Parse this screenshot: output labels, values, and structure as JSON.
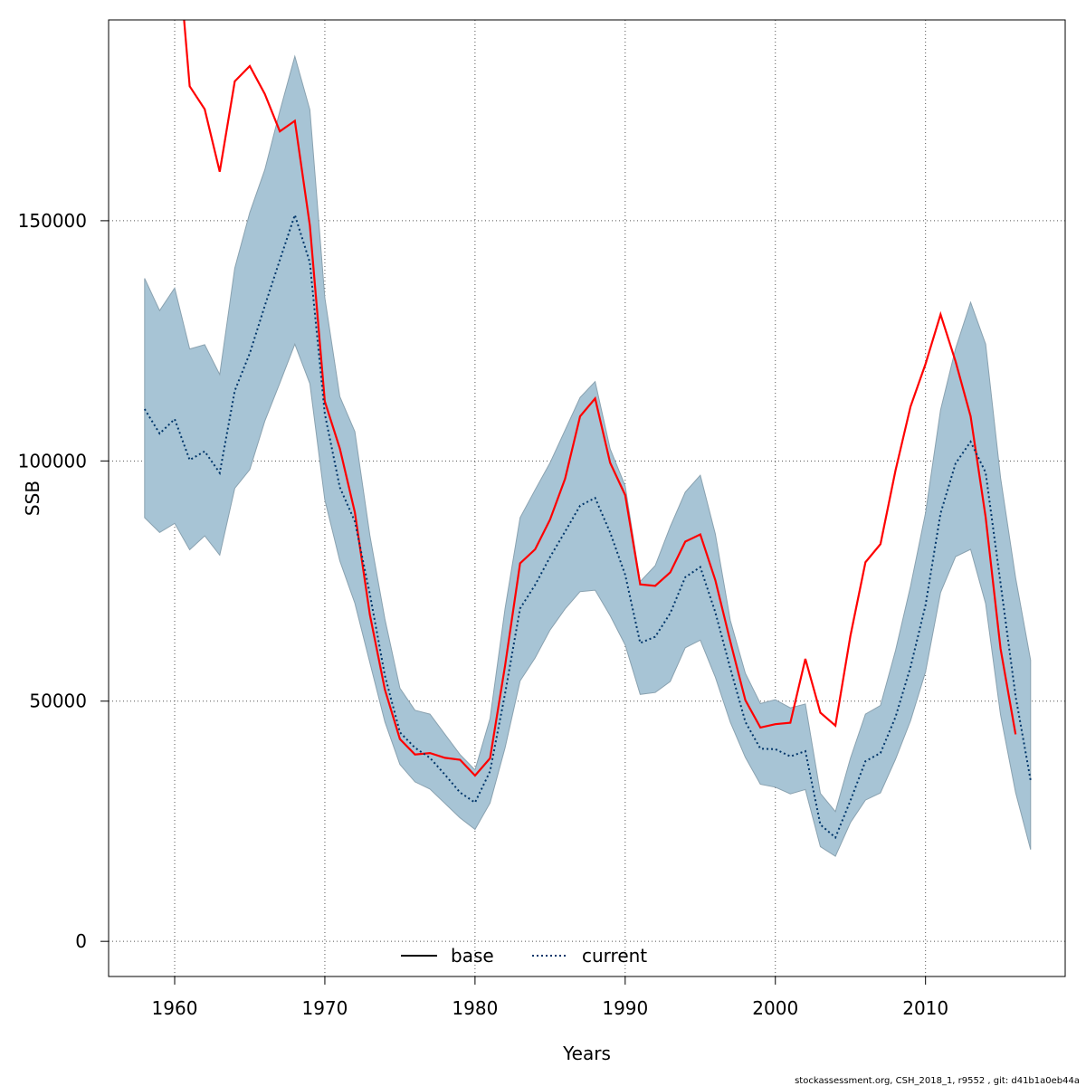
{
  "chart_data": {
    "type": "line",
    "xlabel": "Years",
    "ylabel": "SSB",
    "xlim": [
      1955.6,
      1919.3
    ],
    "ylim": [
      -7315,
      191800
    ],
    "x_ticks": [
      1960,
      1970,
      1980,
      1990,
      2000,
      2010
    ],
    "y_ticks": [
      0,
      50000,
      100000,
      150000
    ],
    "x_tick_labels": [
      "1960",
      "1970",
      "1980",
      "1990",
      "2000",
      "2010"
    ],
    "y_tick_labels": [
      "0",
      "50000",
      "100000",
      "150000"
    ],
    "grid": true,
    "legend": {
      "position": "bottom",
      "entries": [
        "base",
        "current"
      ]
    },
    "footer": "stockassessment.org, CSH_2018_1, r9552 , git: d41b1a0eb44a",
    "colors": {
      "base": "#ff0000",
      "current": "#00366a",
      "band": "#a7c4d5",
      "band_edge": "#8aa2b0",
      "grid": "#555555"
    },
    "series": [
      {
        "name": "base",
        "style": "solid",
        "x": [
          1960,
          1961,
          1962,
          1963,
          1964,
          1965,
          1966,
          1967,
          1968,
          1969,
          1970,
          1971,
          1972,
          1973,
          1974,
          1975,
          1976,
          1977,
          1978,
          1979,
          1980,
          1981,
          1982,
          1983,
          1984,
          1985,
          1986,
          1987,
          1988,
          1989,
          1990,
          1991,
          1992,
          1993,
          1994,
          1995,
          1996,
          1997,
          1998,
          1999,
          2000,
          2001,
          2002,
          2003,
          2004,
          2005,
          2006,
          2007,
          2008,
          2009,
          2010,
          2011,
          2012,
          2013,
          2014,
          2015,
          2016
        ],
        "y": [
          215000,
          178000,
          173200,
          160200,
          179000,
          182200,
          176400,
          168600,
          170800,
          149000,
          112400,
          102600,
          89300,
          68000,
          52400,
          42100,
          38900,
          39200,
          38200,
          37800,
          34500,
          38100,
          57400,
          78700,
          81600,
          87800,
          96300,
          109300,
          113000,
          99600,
          92900,
          74300,
          74000,
          76800,
          83200,
          84700,
          75200,
          62400,
          50200,
          44500,
          45200,
          45500,
          58800,
          47600,
          44900,
          63600,
          78900,
          82700,
          98000,
          111300,
          120200,
          130500,
          120700,
          109300,
          88300,
          60900,
          43100
        ]
      },
      {
        "name": "current",
        "style": "dotted",
        "x": [
          1958,
          1959,
          1960,
          1961,
          1962,
          1963,
          1964,
          1965,
          1966,
          1967,
          1968,
          1969,
          1970,
          1971,
          1972,
          1973,
          1974,
          1975,
          1976,
          1977,
          1978,
          1979,
          1980,
          1981,
          1982,
          1983,
          1984,
          1985,
          1986,
          1987,
          1988,
          1989,
          1990,
          1991,
          1992,
          1993,
          1994,
          1995,
          1996,
          1997,
          1998,
          1999,
          2000,
          2001,
          2002,
          2003,
          2004,
          2005,
          2006,
          2007,
          2008,
          2009,
          2010,
          2011,
          2012,
          2013,
          2014,
          2015,
          2016,
          2017
        ],
        "y": [
          110800,
          105700,
          108700,
          100200,
          102000,
          97500,
          114600,
          122400,
          132300,
          141800,
          151200,
          141300,
          109800,
          94500,
          87400,
          72300,
          55300,
          43500,
          40300,
          38200,
          34700,
          31000,
          28900,
          35400,
          51600,
          69300,
          74200,
          80000,
          85300,
          90700,
          92300,
          85100,
          76300,
          62100,
          63400,
          68300,
          75800,
          77900,
          68500,
          56800,
          45700,
          40100,
          40000,
          38500,
          39600,
          24300,
          21600,
          29300,
          37500,
          39200,
          46700,
          57100,
          70000,
          89100,
          99500,
          104000,
          97600,
          74500,
          51000,
          33500
        ]
      }
    ],
    "band": {
      "x": [
        1958,
        1959,
        1960,
        1961,
        1962,
        1963,
        1964,
        1965,
        1966,
        1967,
        1968,
        1969,
        1970,
        1971,
        1972,
        1973,
        1974,
        1975,
        1976,
        1977,
        1978,
        1979,
        1980,
        1981,
        1982,
        1983,
        1984,
        1985,
        1986,
        1987,
        1988,
        1989,
        1990,
        1991,
        1992,
        1993,
        1994,
        1995,
        1996,
        1997,
        1998,
        1999,
        2000,
        2001,
        2002,
        2003,
        2004,
        2005,
        2006,
        2007,
        2008,
        2009,
        2010,
        2011,
        2012,
        2013,
        2014,
        2015,
        2016,
        2017
      ],
      "lower": [
        88200,
        85100,
        87000,
        81500,
        84400,
        80400,
        94300,
        98200,
        108300,
        116200,
        124300,
        116100,
        91900,
        79200,
        70400,
        58000,
        45700,
        36800,
        33200,
        31700,
        28700,
        25700,
        23300,
        28800,
        40300,
        54200,
        59000,
        64800,
        69200,
        72800,
        73100,
        67800,
        61700,
        51400,
        51800,
        54100,
        61100,
        62700,
        55000,
        45600,
        38300,
        32700,
        32100,
        30700,
        31600,
        19700,
        17700,
        24700,
        29400,
        30900,
        37900,
        45900,
        56100,
        72600,
        80100,
        81600,
        70300,
        47100,
        31000,
        19100
      ],
      "upper": [
        138000,
        131300,
        136000,
        123300,
        124200,
        118000,
        140100,
        151700,
        160600,
        172800,
        184200,
        173100,
        134000,
        113400,
        106100,
        84500,
        67100,
        52700,
        48100,
        47300,
        43100,
        38900,
        35700,
        46400,
        69300,
        88200,
        94000,
        99600,
        106400,
        113200,
        116500,
        102500,
        94800,
        74900,
        78200,
        86300,
        93500,
        97000,
        84800,
        66800,
        55800,
        49500,
        50300,
        48600,
        49400,
        30800,
        27000,
        38100,
        47300,
        49100,
        60500,
        73900,
        89200,
        110600,
        123400,
        133000,
        124300,
        96500,
        75700,
        58500
      ]
    }
  }
}
